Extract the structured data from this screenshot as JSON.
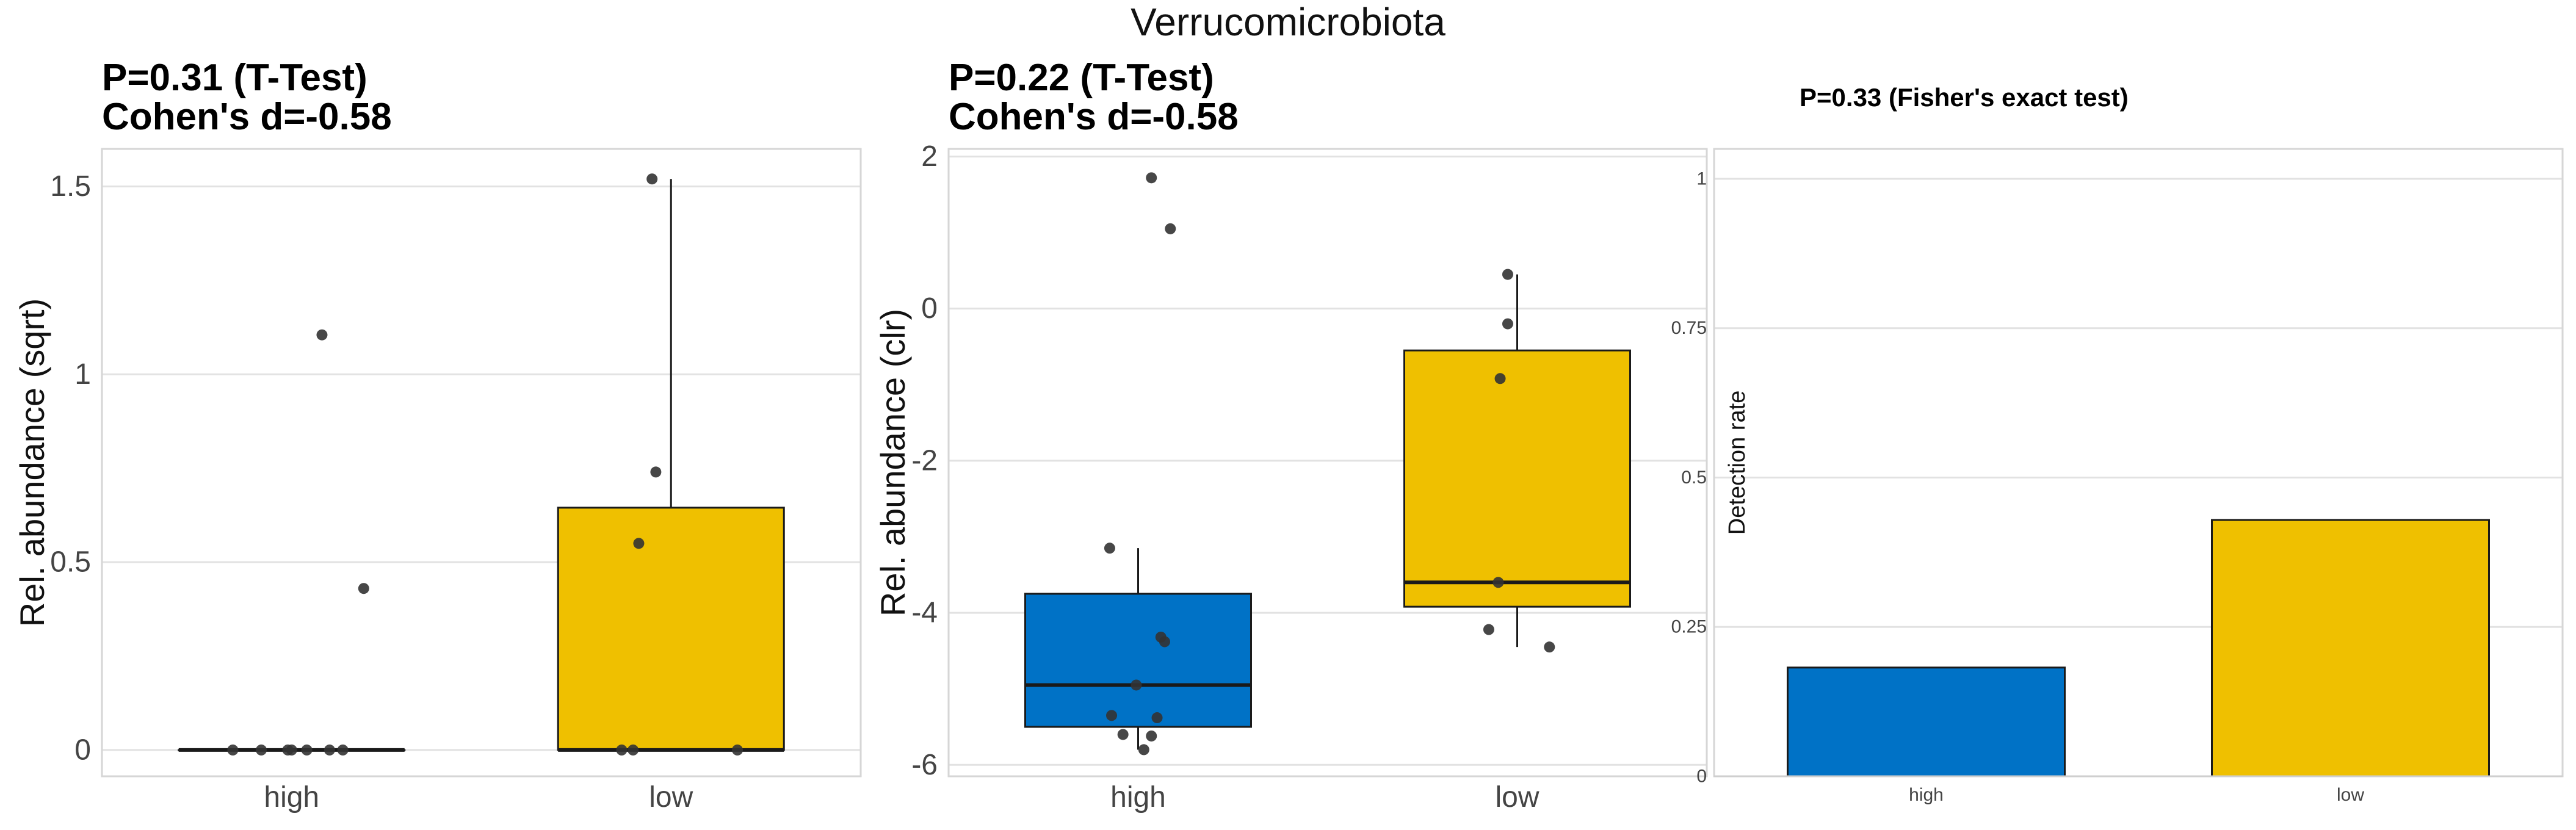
{
  "figure_title": "Verrucomicrobiota",
  "colors": {
    "high": "#0072C6",
    "low": "#EFC000",
    "point": "#333333",
    "outline": "#1a1a1a"
  },
  "chart_data": [
    {
      "type": "box",
      "title_lines": [
        "P=0.31 (T-Test)",
        "Cohen's d=-0.58"
      ],
      "ylabel": "Rel. abundance (sqrt)",
      "xlabel": "",
      "categories": [
        "high",
        "low"
      ],
      "ylim": [
        -0.07,
        1.6
      ],
      "yticks": [
        0,
        0.5,
        1,
        1.5
      ],
      "ytick_labels": [
        "0",
        "0.5",
        "1",
        "1.5"
      ],
      "grid": true,
      "boxes": [
        {
          "group": "high",
          "q1": 0,
          "median": 0,
          "q3": 0,
          "whisker_low": 0,
          "whisker_high": 0
        },
        {
          "group": "low",
          "q1": 0,
          "median": 0,
          "q3": 0.645,
          "whisker_low": 0,
          "whisker_high": 1.52
        }
      ],
      "points": [
        {
          "group": "high",
          "jitter": -0.31,
          "y": 0
        },
        {
          "group": "high",
          "jitter": -0.16,
          "y": 0
        },
        {
          "group": "high",
          "jitter": -0.02,
          "y": 0
        },
        {
          "group": "high",
          "jitter": 0.0,
          "y": 0
        },
        {
          "group": "high",
          "jitter": 0.08,
          "y": 0
        },
        {
          "group": "high",
          "jitter": 0.2,
          "y": 0
        },
        {
          "group": "high",
          "jitter": 0.27,
          "y": 0
        },
        {
          "group": "high",
          "jitter": 0.16,
          "y": 1.105
        },
        {
          "group": "high",
          "jitter": 0.38,
          "y": 0.43
        },
        {
          "group": "low",
          "jitter": -0.26,
          "y": 0
        },
        {
          "group": "low",
          "jitter": -0.2,
          "y": 0
        },
        {
          "group": "low",
          "jitter": 0.35,
          "y": 0
        },
        {
          "group": "low",
          "jitter": -0.17,
          "y": 0.55
        },
        {
          "group": "low",
          "jitter": -0.08,
          "y": 0.74
        },
        {
          "group": "low",
          "jitter": -0.1,
          "y": 1.52
        }
      ]
    },
    {
      "type": "box",
      "title_lines": [
        "P=0.22 (T-Test)",
        "Cohen's d=-0.58"
      ],
      "ylabel": "Rel. abundance (clr)",
      "xlabel": "",
      "categories": [
        "high",
        "low"
      ],
      "ylim": [
        -6.15,
        2.1
      ],
      "yticks": [
        -6,
        -4,
        -2,
        0,
        2
      ],
      "ytick_labels": [
        "-6",
        "-4",
        "-2",
        "0",
        "2"
      ],
      "grid": true,
      "boxes": [
        {
          "group": "high",
          "q1": -5.5,
          "median": -4.95,
          "q3": -3.75,
          "whisker_low": -5.8,
          "whisker_high": -3.15
        },
        {
          "group": "low",
          "q1": -3.92,
          "median": -3.6,
          "q3": -0.55,
          "whisker_low": -4.45,
          "whisker_high": 0.45
        }
      ],
      "points": [
        {
          "group": "high",
          "jitter": -0.15,
          "y": -3.15
        },
        {
          "group": "high",
          "jitter": -0.14,
          "y": -5.35
        },
        {
          "group": "high",
          "jitter": -0.08,
          "y": -5.6
        },
        {
          "group": "high",
          "jitter": 0.07,
          "y": -5.62
        },
        {
          "group": "high",
          "jitter": 0.03,
          "y": -5.8
        },
        {
          "group": "high",
          "jitter": -0.01,
          "y": -4.95
        },
        {
          "group": "high",
          "jitter": 0.1,
          "y": -5.38
        },
        {
          "group": "high",
          "jitter": 0.12,
          "y": -4.32
        },
        {
          "group": "high",
          "jitter": 0.14,
          "y": -4.38
        },
        {
          "group": "high",
          "jitter": 0.07,
          "y": 1.72
        },
        {
          "group": "high",
          "jitter": 0.17,
          "y": 1.05
        },
        {
          "group": "low",
          "jitter": -0.15,
          "y": -4.22
        },
        {
          "group": "low",
          "jitter": -0.1,
          "y": -3.6
        },
        {
          "group": "low",
          "jitter": -0.09,
          "y": -0.92
        },
        {
          "group": "low",
          "jitter": -0.05,
          "y": -0.2
        },
        {
          "group": "low",
          "jitter": -0.05,
          "y": 0.45
        },
        {
          "group": "low",
          "jitter": 0.17,
          "y": -4.45
        }
      ]
    },
    {
      "type": "bar",
      "title_lines": [
        "P=0.33 (Fisher's exact test)"
      ],
      "ylabel": "Detection rate",
      "xlabel": "",
      "categories": [
        "high",
        "low"
      ],
      "values": [
        0.182,
        0.429
      ],
      "ylim": [
        0,
        1.05
      ],
      "yticks": [
        0,
        0.25,
        0.5,
        0.75,
        1
      ],
      "ytick_labels": [
        "0",
        "0.25",
        "0.5",
        "0.75",
        "1"
      ],
      "grid": true
    }
  ]
}
